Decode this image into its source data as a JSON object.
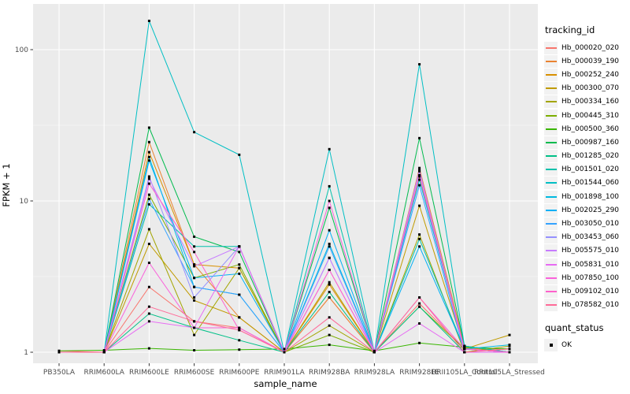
{
  "chart_data": {
    "type": "line",
    "title": "",
    "xlabel": "sample_name",
    "ylabel": "FPKM + 1",
    "y_scale": "log10",
    "ylim": [
      0.85,
      180
    ],
    "y_ticks": [
      1,
      10,
      100
    ],
    "y_minor": [
      3.162,
      31.623
    ],
    "grid": "on",
    "panel_bg": "#EBEBEB",
    "grid_color": "#FFFFFF",
    "tick_label_color": "#4D4D4D",
    "point_color": "#000000",
    "legend_position": "right",
    "legend_title": "tracking_id",
    "legend2_title": "quant_status",
    "quant_status_label": "OK",
    "categories": [
      "PB350LA",
      "RRIM600LA",
      "RRIM600LE",
      "RRIM600SE",
      "RRIM600PE",
      "RRIM901LA",
      "RRIM928BA",
      "RRIM928LA",
      "RRIM928LE",
      "RRII105LA_Control",
      "RRII105LA_Stressed"
    ],
    "series": [
      {
        "name": "Hb_000020_020",
        "color": "#F8766D",
        "values": [
          1.02,
          1,
          2.7,
          1.6,
          1.45,
          1,
          2.3,
          1,
          2.1,
          1.05,
          1.05
        ]
      },
      {
        "name": "Hb_000039_190",
        "color": "#EA8331",
        "values": [
          1,
          1,
          24.5,
          3.8,
          1.7,
          1,
          2.3,
          1,
          16.5,
          1.1,
          1
        ]
      },
      {
        "name": "Hb_000252_240",
        "color": "#D89000",
        "values": [
          1,
          1,
          21,
          3.8,
          3.6,
          1,
          2.8,
          1,
          14.5,
          1.08,
          1
        ]
      },
      {
        "name": "Hb_000300_070",
        "color": "#C09B00",
        "values": [
          1,
          1,
          5.2,
          2.2,
          1.7,
          1,
          2.9,
          1,
          9.3,
          1.05,
          1.3
        ]
      },
      {
        "name": "Hb_000334_160",
        "color": "#A3A500",
        "values": [
          1,
          1,
          6.5,
          1.3,
          3.6,
          1,
          1.5,
          1,
          6,
          1,
          1.1
        ]
      },
      {
        "name": "Hb_000445_310",
        "color": "#7CAE00",
        "values": [
          1,
          1,
          11,
          3.1,
          3.8,
          1,
          1.3,
          1,
          2,
          1.05,
          1
        ]
      },
      {
        "name": "Hb_000500_360",
        "color": "#39B600",
        "values": [
          1.02,
          1.03,
          1.06,
          1.03,
          1.04,
          1.05,
          1.12,
          1.02,
          1.15,
          1.08,
          1.05
        ]
      },
      {
        "name": "Hb_000987_160",
        "color": "#00BB4E",
        "values": [
          1,
          1,
          30.5,
          5.8,
          4.6,
          1,
          9,
          1,
          26,
          1.1,
          1
        ]
      },
      {
        "name": "Hb_001285_020",
        "color": "#00C087",
        "values": [
          1,
          1,
          1.8,
          1.45,
          1.2,
          1,
          2.5,
          1,
          2,
          1,
          1
        ]
      },
      {
        "name": "Hb_001501_020",
        "color": "#00C1AB",
        "values": [
          1,
          1,
          9.5,
          5,
          5,
          1,
          12.5,
          1,
          5.6,
          1.05,
          1
        ]
      },
      {
        "name": "Hb_001544_060",
        "color": "#00BFC4",
        "values": [
          1,
          1,
          155,
          28.5,
          20.2,
          1,
          22,
          1,
          80,
          1.1,
          1
        ]
      },
      {
        "name": "Hb_001898_100",
        "color": "#00BAE0",
        "values": [
          1,
          1,
          19.5,
          2.7,
          2.4,
          1,
          5.2,
          1,
          13.8,
          1.05,
          1.12
        ]
      },
      {
        "name": "Hb_002025_290",
        "color": "#00B0F6",
        "values": [
          1,
          1,
          18.5,
          3.1,
          3.3,
          1,
          6.4,
          1,
          5,
          1.05,
          1
        ]
      },
      {
        "name": "Hb_003050_010",
        "color": "#35A2FF",
        "values": [
          1,
          1,
          10.3,
          2.7,
          2.4,
          1,
          5,
          1,
          12.7,
          1,
          1
        ]
      },
      {
        "name": "Hb_003453_060",
        "color": "#9590FF",
        "values": [
          1,
          1,
          14.5,
          2.3,
          5,
          1,
          4.2,
          1,
          15.7,
          1.05,
          1
        ]
      },
      {
        "name": "Hb_005575_010",
        "color": "#C77CFF",
        "values": [
          1,
          1,
          14,
          3.7,
          5,
          1,
          4.2,
          1,
          16,
          1,
          1
        ]
      },
      {
        "name": "Hb_005831_010",
        "color": "#E76BF3",
        "values": [
          1,
          1,
          1.6,
          1.45,
          5,
          1,
          3.5,
          1,
          1.55,
          1,
          1
        ]
      },
      {
        "name": "Hb_007850_100",
        "color": "#FA62DB",
        "values": [
          1,
          1,
          3.9,
          1.45,
          1.45,
          1,
          10,
          1,
          2.3,
          1.05,
          1
        ]
      },
      {
        "name": "Hb_009102_010",
        "color": "#FF61CC",
        "values": [
          1,
          1,
          13,
          4.6,
          1.4,
          1,
          3.5,
          1,
          14.8,
          1.05,
          1
        ]
      },
      {
        "name": "Hb_078582_010",
        "color": "#FF6A98",
        "values": [
          1,
          1,
          2,
          1.6,
          1.4,
          1,
          1.7,
          1,
          2.3,
          1,
          1.05
        ]
      }
    ]
  }
}
